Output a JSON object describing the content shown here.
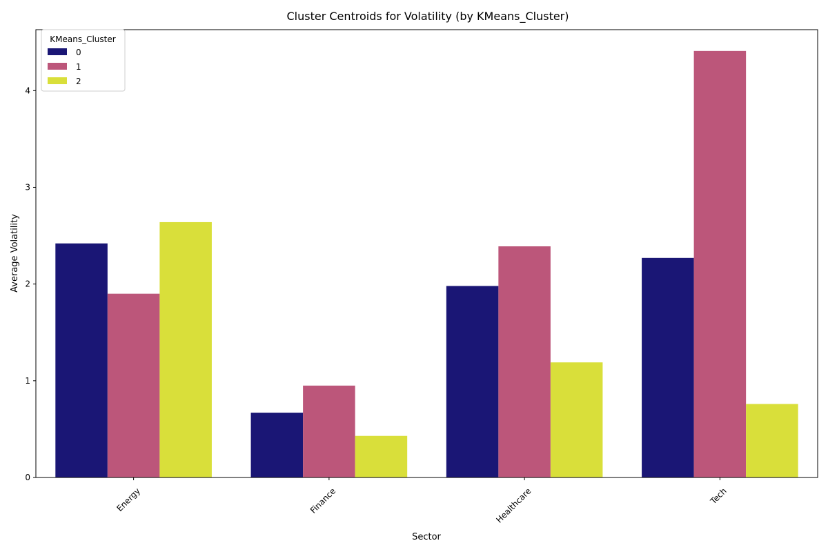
{
  "chart_data": {
    "type": "bar",
    "title": "Cluster Centroids for Volatility (by KMeans_Cluster)",
    "xlabel": "Sector",
    "ylabel": "Average Volatility",
    "categories": [
      "Energy",
      "Finance",
      "Healthcare",
      "Tech"
    ],
    "series": [
      {
        "name": "0",
        "color": "#1a1675",
        "values": [
          2.42,
          0.67,
          1.98,
          2.27
        ]
      },
      {
        "name": "1",
        "color": "#bc567a",
        "values": [
          1.9,
          0.95,
          2.39,
          4.41
        ]
      },
      {
        "name": "2",
        "color": "#d9df3a",
        "values": [
          2.64,
          0.43,
          1.19,
          0.76
        ]
      }
    ],
    "ylim": [
      0,
      4.63
    ],
    "yticks": [
      0,
      1,
      2,
      3,
      4
    ],
    "grid": false,
    "legend": {
      "title": "KMeans_Cluster",
      "position": "top-left"
    }
  }
}
